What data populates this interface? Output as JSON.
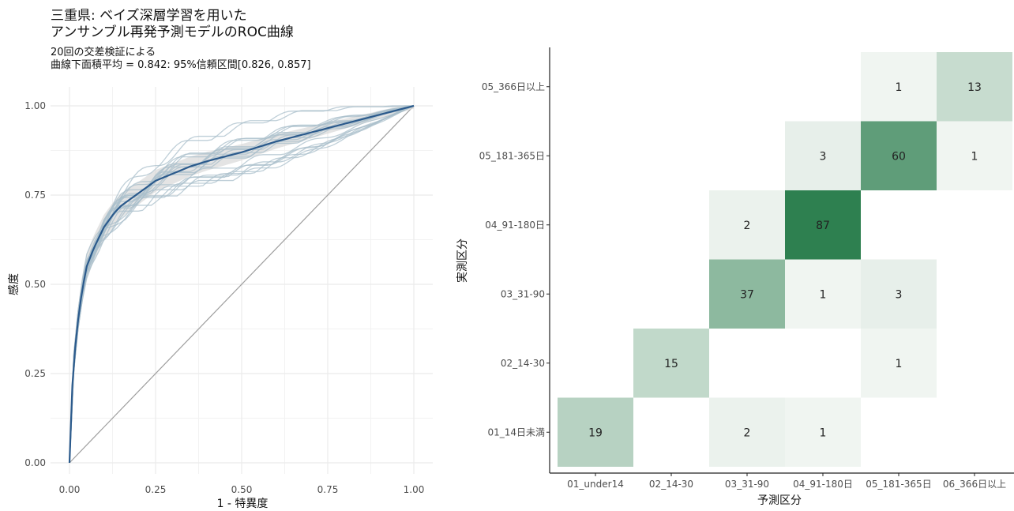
{
  "chart_data": [
    {
      "type": "line",
      "title_lines": [
        "三重県: ベイズ深層学習を用いた",
        "アンサンブル再発予測モデルのROC曲線"
      ],
      "subtitle_lines": [
        "20回の交差検証による",
        "曲線下面積平均 = 0.842: 95%信頼区間[0.826, 0.857]"
      ],
      "xlabel": "1 - 特異度",
      "ylabel": "感度",
      "xlim": [
        0,
        1
      ],
      "ylim": [
        0,
        1
      ],
      "xticks": [
        "0.00",
        "0.25",
        "0.50",
        "0.75",
        "1.00"
      ],
      "yticks": [
        "0.00",
        "0.25",
        "0.50",
        "0.75",
        "1.00"
      ],
      "mean_curve": {
        "x": [
          0,
          0.005,
          0.01,
          0.02,
          0.03,
          0.04,
          0.05,
          0.07,
          0.1,
          0.13,
          0.15,
          0.2,
          0.25,
          0.3,
          0.35,
          0.4,
          0.5,
          0.6,
          0.7,
          0.8,
          0.9,
          1.0
        ],
        "y": [
          0,
          0.15,
          0.25,
          0.36,
          0.44,
          0.5,
          0.55,
          0.6,
          0.66,
          0.7,
          0.72,
          0.755,
          0.79,
          0.81,
          0.83,
          0.845,
          0.87,
          0.9,
          0.925,
          0.95,
          0.975,
          1.0
        ]
      },
      "fold_count": 20,
      "diagonal": true,
      "colors": {
        "mean": "#2b5a8c",
        "folds": "#a9bfcb",
        "band": "#d9d9d9",
        "diagonal": "#9e9e9e",
        "grid": "#ebebeb"
      }
    },
    {
      "type": "heatmap",
      "xlabel": "予測区分",
      "ylabel": "実測区分",
      "x_categories": [
        "01_under14",
        "02_14-30",
        "03_31-90",
        "04_91-180日",
        "05_181-365日",
        "06_366日以上"
      ],
      "y_categories": [
        "01_14日未満",
        "02_14-30",
        "03_31-90",
        "04_91-180日",
        "05_181-365日",
        "05_366日以上"
      ],
      "cells": [
        {
          "row": 0,
          "col": 0,
          "value": 19
        },
        {
          "row": 0,
          "col": 2,
          "value": 2
        },
        {
          "row": 0,
          "col": 3,
          "value": 1
        },
        {
          "row": 1,
          "col": 1,
          "value": 15
        },
        {
          "row": 1,
          "col": 4,
          "value": 1
        },
        {
          "row": 2,
          "col": 2,
          "value": 37
        },
        {
          "row": 2,
          "col": 3,
          "value": 1
        },
        {
          "row": 2,
          "col": 4,
          "value": 3
        },
        {
          "row": 3,
          "col": 2,
          "value": 2
        },
        {
          "row": 3,
          "col": 3,
          "value": 87
        },
        {
          "row": 4,
          "col": 3,
          "value": 3
        },
        {
          "row": 4,
          "col": 4,
          "value": 60
        },
        {
          "row": 4,
          "col": 5,
          "value": 1
        },
        {
          "row": 5,
          "col": 4,
          "value": 1
        },
        {
          "row": 5,
          "col": 5,
          "value": 13
        }
      ],
      "colors": {
        "low": "#f7f9f7",
        "high": "#2e8050"
      }
    }
  ]
}
